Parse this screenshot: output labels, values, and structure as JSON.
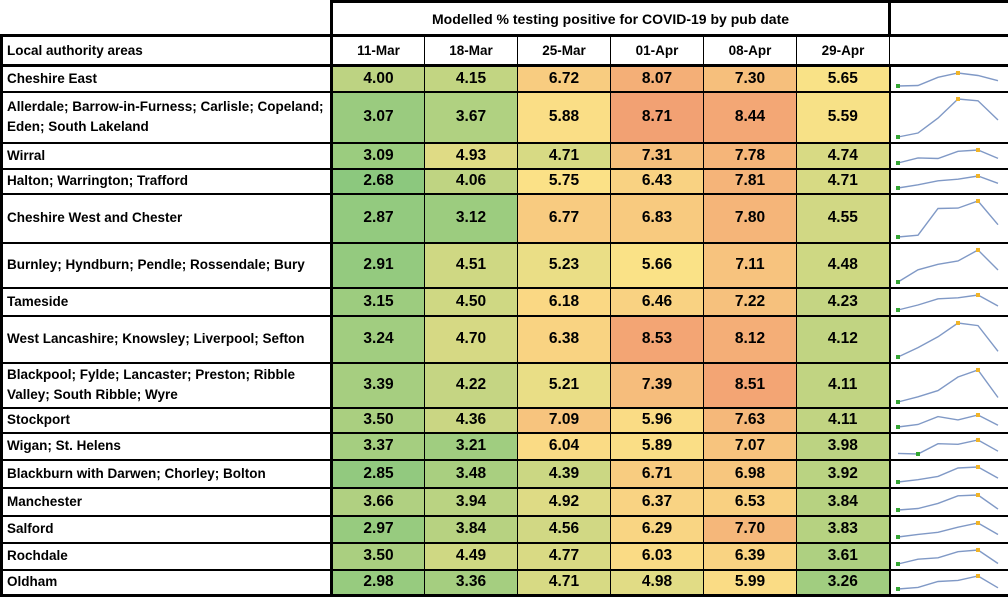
{
  "header": {
    "title": "Modelled % testing positive for COVID-19 by pub date",
    "row_label_header": "Local authority areas"
  },
  "chart_data": {
    "type": "heatmap",
    "title": "Modelled % testing positive for COVID-19 by pub date",
    "row_label_header": "Local authority areas",
    "columns": [
      "11-Mar",
      "18-Mar",
      "25-Mar",
      "01-Apr",
      "08-Apr",
      "29-Apr"
    ],
    "rows": [
      {
        "name": "Cheshire East",
        "values": [
          4.0,
          4.15,
          6.72,
          8.07,
          7.3,
          5.65
        ]
      },
      {
        "name": "Allerdale; Barrow-in-Furness; Carlisle; Copeland; Eden; South Lakeland",
        "values": [
          3.07,
          3.67,
          5.88,
          8.71,
          8.44,
          5.59
        ]
      },
      {
        "name": "Wirral",
        "values": [
          3.09,
          4.93,
          4.71,
          7.31,
          7.78,
          4.74
        ]
      },
      {
        "name": "Halton; Warrington; Trafford",
        "values": [
          2.68,
          4.06,
          5.75,
          6.43,
          7.81,
          4.71
        ]
      },
      {
        "name": "Cheshire West and Chester",
        "values": [
          2.87,
          3.12,
          6.77,
          6.83,
          7.8,
          4.55
        ]
      },
      {
        "name": "Burnley; Hyndburn; Pendle; Rossendale; Bury",
        "values": [
          2.91,
          4.51,
          5.23,
          5.66,
          7.11,
          4.48
        ]
      },
      {
        "name": "Tameside",
        "values": [
          3.15,
          4.5,
          6.18,
          6.46,
          7.22,
          4.23
        ]
      },
      {
        "name": "West Lancashire; Knowsley; Liverpool; Sefton",
        "values": [
          3.24,
          4.7,
          6.38,
          8.53,
          8.12,
          4.12
        ]
      },
      {
        "name": "Blackpool; Fylde; Lancaster; Preston; Ribble Valley; South Ribble; Wyre",
        "values": [
          3.39,
          4.22,
          5.21,
          7.39,
          8.51,
          4.11
        ]
      },
      {
        "name": "Stockport",
        "values": [
          3.5,
          4.36,
          7.09,
          5.96,
          7.63,
          4.11
        ]
      },
      {
        "name": "Wigan; St. Helens",
        "values": [
          3.37,
          3.21,
          6.04,
          5.89,
          7.07,
          3.98
        ]
      },
      {
        "name": "Blackburn with Darwen; Chorley; Bolton",
        "values": [
          2.85,
          3.48,
          4.39,
          6.71,
          6.98,
          3.92
        ]
      },
      {
        "name": "Manchester",
        "values": [
          3.66,
          3.94,
          4.92,
          6.37,
          6.53,
          3.84
        ]
      },
      {
        "name": "Salford",
        "values": [
          2.97,
          3.84,
          4.56,
          6.29,
          7.7,
          3.83
        ]
      },
      {
        "name": "Rochdale",
        "values": [
          3.5,
          4.49,
          4.77,
          6.03,
          6.39,
          3.61
        ]
      },
      {
        "name": "Oldham",
        "values": [
          2.98,
          3.36,
          4.71,
          4.98,
          5.99,
          3.26
        ]
      }
    ],
    "color_scale": {
      "min": {
        "value": 2.68,
        "color": "#8CC87E"
      },
      "mid": {
        "value": 5.695,
        "color": "#FBE287"
      },
      "max": {
        "value": 8.71,
        "color": "#F2A173"
      }
    },
    "sparkline": {
      "description": "per-row line of the six values, low point marked green, high point marked gold",
      "line_color": "#8099C6",
      "low_marker_color": "#33A532",
      "high_marker_color": "#F0B428"
    },
    "value_format": "2 decimal places",
    "grid": true,
    "legend": false
  }
}
